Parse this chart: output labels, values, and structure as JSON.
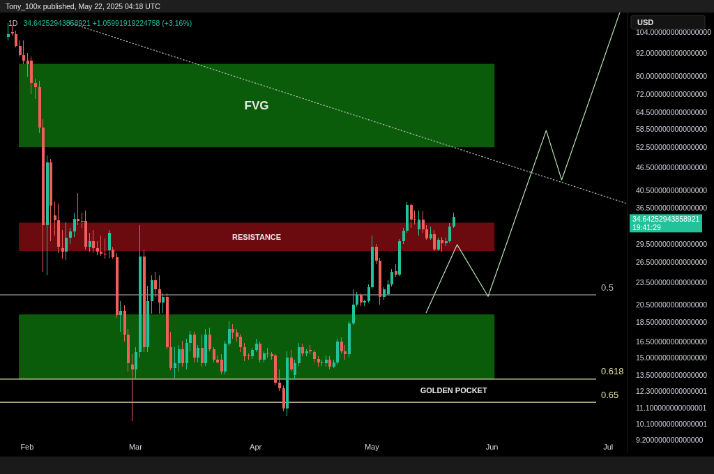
{
  "chart_data": {
    "type": "candlestick",
    "title": "1D",
    "subtitle": "34.64252943858921 +1.05991919224758 (+3.16%)",
    "ylabel": "USD",
    "annotations": [
      "Tony_100x published, May 22, 2025 04:18 UTC",
      "34.64252943858921",
      "19:41:29",
      "0.5",
      "0.618",
      "0.65",
      "GOLDEN POCKET"
    ],
    "log": true,
    "grid": false,
    "xlim": [
      "2025-01-25",
      "2025-07-06"
    ],
    "xticks": [
      {
        "value": "2025-02-01",
        "label": "Feb"
      },
      {
        "value": "2025-03-01",
        "label": "Mar"
      },
      {
        "value": "2025-04-01",
        "label": "Apr"
      },
      {
        "value": "2025-05-01",
        "label": "May"
      },
      {
        "value": "2025-06-01",
        "label": "Jun"
      },
      {
        "value": "2025-07-01",
        "label": "Jul"
      }
    ],
    "ylim": [
      8.5,
      117
    ],
    "yticks": [
      {
        "value": 104,
        "label": "104.000000000000000"
      },
      {
        "value": 92,
        "label": "92.000000000000000"
      },
      {
        "value": 80,
        "label": "80.000000000000000"
      },
      {
        "value": 72,
        "label": "72.000000000000000"
      },
      {
        "value": 64.5,
        "label": "64.500000000000000"
      },
      {
        "value": 58.5,
        "label": "58.500000000000000"
      },
      {
        "value": 52.5,
        "label": "52.500000000000000"
      },
      {
        "value": 46.5,
        "label": "46.500000000000000"
      },
      {
        "value": 40.5,
        "label": "40.500000000000000"
      },
      {
        "value": 36.5,
        "label": "36.500000000000000"
      },
      {
        "value": 29.5,
        "label": "29.500000000000000"
      },
      {
        "value": 26.5,
        "label": "26.500000000000000"
      },
      {
        "value": 23.5,
        "label": "23.500000000000000"
      },
      {
        "value": 20.5,
        "label": "20.500000000000000"
      },
      {
        "value": 18.5,
        "label": "18.500000000000000"
      },
      {
        "value": 16.5,
        "label": "16.500000000000000"
      },
      {
        "value": 15,
        "label": "15.000000000000000"
      },
      {
        "value": 13.5,
        "label": "13.500000000000000"
      },
      {
        "value": 12.3,
        "label": "12.300000000000001"
      },
      {
        "value": 11.1,
        "label": "11.100000000000001"
      },
      {
        "value": 10.1,
        "label": "10.100000000000001"
      },
      {
        "value": 9.2,
        "label": "9.200000000000000"
      }
    ],
    "bands": [
      {
        "axis": "y",
        "from": 52.5,
        "to": 86.2,
        "label": "FVG",
        "color": "#0a5c0a"
      },
      {
        "axis": "y",
        "from": 28.3,
        "to": 33.5,
        "label": "RESISTANCE",
        "color": "#6b0a0f"
      },
      {
        "axis": "y",
        "from": 13.2,
        "to": 19.4,
        "color": "#0a5c0a"
      }
    ],
    "ref_lines": [
      {
        "axis": "y",
        "value": 21.8,
        "color": "#bdbdbd"
      },
      {
        "axis": "y",
        "value": 13.2,
        "color": "#e4dfa8"
      },
      {
        "axis": "y",
        "value": 11.5,
        "color": "#e4dfa8"
      }
    ],
    "series": [
      {
        "type": "line",
        "color": "#bdbdbd",
        "line_style": "dotted",
        "x": [
          "2025-02-12",
          "2025-07-06"
        ],
        "values": [
          110,
          37.5
        ]
      },
      {
        "type": "line",
        "color": "#b9e4b9",
        "line_style": "solid",
        "x": [
          "2025-05-15",
          "2025-05-23",
          "2025-05-31",
          "2025-06-15",
          "2025-06-19",
          "2025-07-04"
        ],
        "values": [
          19.6,
          29.4,
          21.6,
          58,
          43.2,
          117
        ]
      },
      {
        "color": "#22c29b",
        "x": [
          "2025-01-27",
          "2025-02-06",
          "2025-02-11",
          "2025-02-12",
          "2025-02-13",
          "2025-02-17",
          "2025-02-22",
          "2025-02-25",
          "2025-03-01",
          "2025-03-02",
          "2025-03-04",
          "2025-03-05",
          "2025-03-08",
          "2025-03-11",
          "2025-03-12",
          "2025-03-14",
          "2025-03-15",
          "2025-03-17",
          "2025-03-19",
          "2025-03-24",
          "2025-03-25",
          "2025-03-31",
          "2025-04-01",
          "2025-04-03",
          "2025-04-09",
          "2025-04-11",
          "2025-04-12",
          "2025-04-14",
          "2025-04-19",
          "2025-04-21",
          "2025-04-22",
          "2025-04-25",
          "2025-04-26",
          "2025-04-27",
          "2025-04-29",
          "2025-04-30",
          "2025-05-01",
          "2025-05-04",
          "2025-05-05",
          "2025-05-06",
          "2025-05-08",
          "2025-05-09",
          "2025-05-10",
          "2025-05-13",
          "2025-05-16",
          "2025-05-18",
          "2025-05-20",
          "2025-05-21",
          "2025-05-22"
        ],
        "ohlc": [
          [
            101,
            110,
            99,
            103
          ],
          [
            33,
            50,
            24.5,
            48
          ],
          [
            28.2,
            33.5,
            26.8,
            30.6
          ],
          [
            30.6,
            32.5,
            29.5,
            31.8
          ],
          [
            31.8,
            35.5,
            30.8,
            34.3
          ],
          [
            29,
            31.5,
            28.2,
            30
          ],
          [
            28.4,
            32,
            27.2,
            31.5
          ],
          [
            19.3,
            21,
            17.5,
            19.8
          ],
          [
            14,
            16,
            13.2,
            15.5
          ],
          [
            15.5,
            33,
            15,
            27.4
          ],
          [
            16,
            23,
            15.5,
            21
          ],
          [
            21,
            24.5,
            19.5,
            23.8
          ],
          [
            20.8,
            22,
            19.6,
            21.5
          ],
          [
            14.1,
            16,
            13.3,
            14.5
          ],
          [
            14.5,
            16.2,
            13.8,
            15.8
          ],
          [
            14.5,
            16.8,
            14,
            16.4
          ],
          [
            16.4,
            17.6,
            15.6,
            17.2
          ],
          [
            15,
            16.2,
            14.6,
            15.9
          ],
          [
            14.5,
            17.8,
            14.3,
            17.2
          ],
          [
            13.8,
            16.6,
            13.6,
            16.3
          ],
          [
            16.3,
            18.6,
            16.1,
            17.8
          ],
          [
            15.1,
            15.9,
            14.9,
            15.7
          ],
          [
            15.7,
            16.8,
            15.5,
            16.3
          ],
          [
            14.8,
            15.6,
            14.6,
            15.4
          ],
          [
            11.1,
            15.6,
            10.6,
            15
          ],
          [
            13.5,
            14.8,
            13.2,
            14.5
          ],
          [
            14.5,
            16.4,
            14.3,
            16
          ],
          [
            15.4,
            15.8,
            15.1,
            15.6
          ],
          [
            14.5,
            15.2,
            14.2,
            14.8
          ],
          [
            14.2,
            14.8,
            14.1,
            14.6
          ],
          [
            14.6,
            16.8,
            14.4,
            16.5
          ],
          [
            15.3,
            18.6,
            15,
            18.4
          ],
          [
            18.4,
            22.5,
            18.2,
            20.6
          ],
          [
            20.6,
            22.2,
            20.3,
            21.8
          ],
          [
            20.8,
            21.2,
            20.4,
            21
          ],
          [
            21,
            23.2,
            20.8,
            22.8
          ],
          [
            22.8,
            31,
            22.6,
            29
          ],
          [
            21.5,
            22.8,
            21.2,
            22.5
          ],
          [
            21.9,
            23.8,
            21.7,
            23.2
          ],
          [
            23.2,
            25.4,
            22.9,
            25
          ],
          [
            24.6,
            30.4,
            24.4,
            30
          ],
          [
            30,
            32.4,
            29.5,
            31.9
          ],
          [
            31.9,
            37.8,
            31.5,
            37.2
          ],
          [
            32.2,
            36,
            31,
            34.1
          ],
          [
            30.5,
            32.8,
            30.2,
            31.3
          ],
          [
            28.6,
            30.6,
            28.3,
            30.3
          ],
          [
            29.6,
            30.6,
            29.2,
            30
          ],
          [
            30,
            33.4,
            29.8,
            32.8
          ],
          [
            32.8,
            35.5,
            32.4,
            34.64252943858921
          ]
        ]
      },
      {
        "color": "#ef5f5c",
        "x": [
          "2025-01-28",
          "2025-01-29",
          "2025-01-30",
          "2025-01-31",
          "2025-02-01",
          "2025-02-02",
          "2025-02-03",
          "2025-02-04",
          "2025-02-05",
          "2025-02-07",
          "2025-02-08",
          "2025-02-09",
          "2025-02-10",
          "2025-02-14",
          "2025-02-15",
          "2025-02-16",
          "2025-02-18",
          "2025-02-19",
          "2025-02-20",
          "2025-02-21",
          "2025-02-23",
          "2025-02-24",
          "2025-02-26",
          "2025-02-27",
          "2025-02-28",
          "2025-03-03",
          "2025-03-06",
          "2025-03-07",
          "2025-03-09",
          "2025-03-10",
          "2025-03-13",
          "2025-03-16",
          "2025-03-18",
          "2025-03-20",
          "2025-03-21",
          "2025-03-22",
          "2025-03-23",
          "2025-03-26",
          "2025-03-27",
          "2025-03-28",
          "2025-03-29",
          "2025-03-30",
          "2025-04-02",
          "2025-04-04",
          "2025-04-05",
          "2025-04-06",
          "2025-04-07",
          "2025-04-08",
          "2025-04-10",
          "2025-04-13",
          "2025-04-15",
          "2025-04-16",
          "2025-04-17",
          "2025-04-18",
          "2025-04-20",
          "2025-04-23",
          "2025-04-24",
          "2025-04-28",
          "2025-05-02",
          "2025-05-03",
          "2025-05-07",
          "2025-05-11",
          "2025-05-12",
          "2025-05-14",
          "2025-05-15",
          "2025-05-17",
          "2025-05-19"
        ],
        "ohlc": [
          [
            104,
            108,
            102,
            103.5
          ],
          [
            103,
            105,
            95,
            96
          ],
          [
            96,
            99,
            90,
            91
          ],
          [
            91,
            99,
            86,
            88
          ],
          [
            88,
            92,
            80,
            86
          ],
          [
            88,
            90,
            72,
            77
          ],
          [
            77,
            79,
            70,
            75
          ],
          [
            75,
            78,
            57,
            59
          ],
          [
            59,
            62,
            25,
            33
          ],
          [
            48,
            49,
            30,
            37
          ],
          [
            35,
            38,
            31,
            34
          ],
          [
            34,
            37.5,
            28,
            29
          ],
          [
            28.8,
            32,
            27,
            28.2
          ],
          [
            34.3,
            40,
            33,
            33.9
          ],
          [
            33.9,
            35.5,
            32.5,
            33.7
          ],
          [
            33.8,
            36,
            28.5,
            29
          ],
          [
            30,
            32,
            28,
            28.8
          ],
          [
            28.8,
            30,
            27.6,
            28.2
          ],
          [
            28.2,
            31,
            27.5,
            27.9
          ],
          [
            27.9,
            30.5,
            27.1,
            27.7
          ],
          [
            28.5,
            29,
            27,
            27.3
          ],
          [
            27.3,
            28,
            19,
            19.3
          ],
          [
            19.8,
            20.5,
            16.5,
            17.2
          ],
          [
            17.2,
            17.8,
            13.8,
            14.5
          ],
          [
            14.4,
            15.3,
            10.3,
            14
          ],
          [
            27.4,
            28.5,
            15.5,
            16
          ],
          [
            23.8,
            25,
            21.5,
            22.5
          ],
          [
            22.5,
            24.5,
            19.5,
            20.8
          ],
          [
            21.5,
            22,
            15.8,
            16
          ],
          [
            16,
            17.5,
            13.9,
            14.1
          ],
          [
            15.8,
            16.6,
            14.2,
            14.5
          ],
          [
            17.2,
            17.5,
            14.6,
            15
          ],
          [
            15.9,
            17.2,
            14.2,
            14.5
          ],
          [
            17.2,
            17.9,
            15.6,
            15.8
          ],
          [
            15.8,
            16,
            14.6,
            14.8
          ],
          [
            14.8,
            15.2,
            14.5,
            14.6
          ],
          [
            14.8,
            15.3,
            13.6,
            13.8
          ],
          [
            17.8,
            18.3,
            16.8,
            17.4
          ],
          [
            17.4,
            17.8,
            16.5,
            17
          ],
          [
            17,
            17.3,
            15.5,
            16
          ],
          [
            16,
            16.4,
            14.7,
            15.1
          ],
          [
            15.2,
            15.4,
            14.8,
            15.1
          ],
          [
            16.3,
            16.5,
            14.6,
            14.8
          ],
          [
            15.4,
            15.9,
            15,
            15.3
          ],
          [
            15.3,
            15.5,
            14.8,
            15.1
          ],
          [
            15.2,
            15.3,
            12.7,
            12.9
          ],
          [
            12.9,
            14,
            12.3,
            12.5
          ],
          [
            12.5,
            12.7,
            10.9,
            11.1
          ],
          [
            15,
            15.7,
            13.8,
            14
          ],
          [
            16,
            16.3,
            15.1,
            15.4
          ],
          [
            15.7,
            16.2,
            15.3,
            15.6
          ],
          [
            15.5,
            15.7,
            14.6,
            14.9
          ],
          [
            14.9,
            15.1,
            14.2,
            14.6
          ],
          [
            14.6,
            14.8,
            14.3,
            14.5
          ],
          [
            14.8,
            15.1,
            14,
            14.2
          ],
          [
            16.5,
            16.9,
            15.4,
            15.6
          ],
          [
            15.6,
            16.2,
            14.8,
            15.3
          ],
          [
            21.8,
            22,
            20.4,
            20.8
          ],
          [
            29,
            29.5,
            26.2,
            26.7
          ],
          [
            26.7,
            27.2,
            20.6,
            21.5
          ],
          [
            25.1,
            26.2,
            24.3,
            24.6
          ],
          [
            37.2,
            37.6,
            32.4,
            34.1
          ],
          [
            34.3,
            36,
            33.2,
            34.1
          ],
          [
            34.1,
            35.8,
            31.6,
            32.2
          ],
          [
            32.2,
            33,
            30.2,
            30.5
          ],
          [
            31.3,
            32,
            28.3,
            28.6
          ],
          [
            30.3,
            30.8,
            28.2,
            29.6
          ]
        ]
      }
    ]
  }
}
